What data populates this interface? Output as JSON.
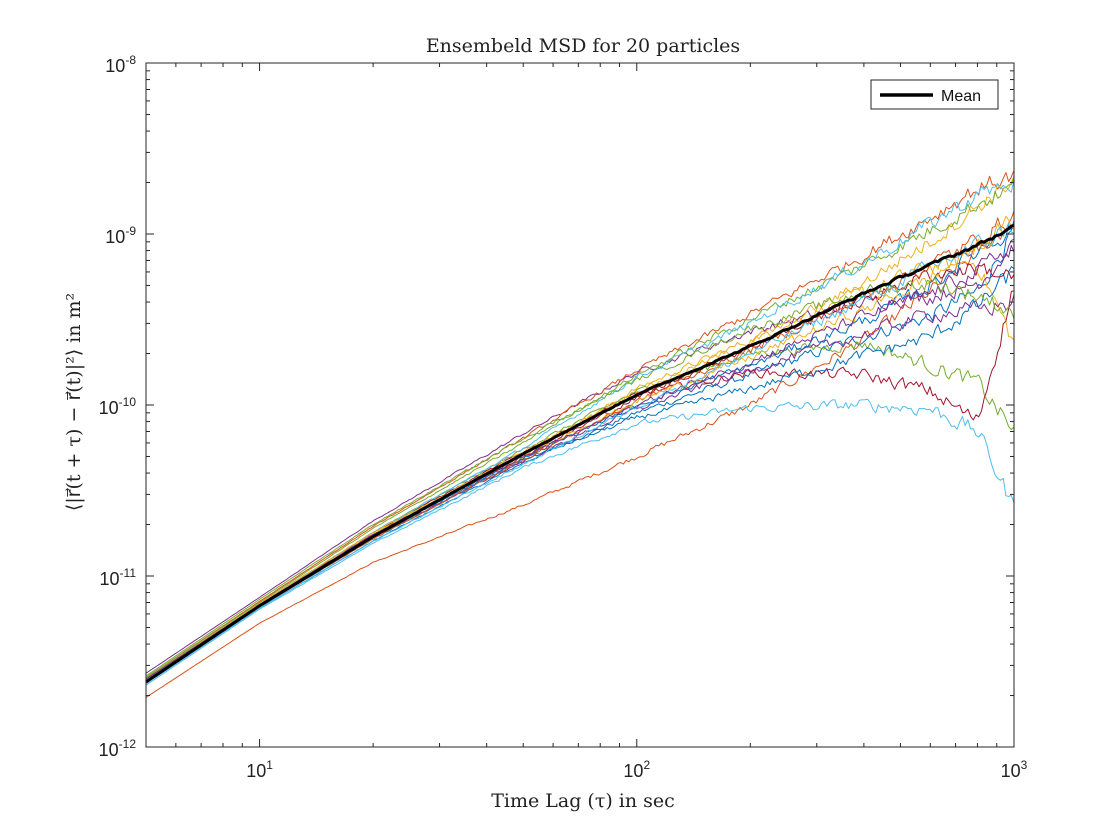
{
  "chart_data": {
    "type": "line",
    "title": "Ensembeld MSD for 20 particles",
    "xlabel": "Time Lag (τ) in sec",
    "ylabel": "⟨|r⃗(t + τ) − r⃗(t)|²⟩ in m²",
    "xscale": "log",
    "yscale": "log",
    "xlim": [
      5,
      1000
    ],
    "ylim": [
      1e-12,
      1e-08
    ],
    "x_ticks": [
      {
        "value": 10,
        "base": "10",
        "exp": "1"
      },
      {
        "value": 100,
        "base": "10",
        "exp": "2"
      },
      {
        "value": 1000,
        "base": "10",
        "exp": "3"
      }
    ],
    "y_ticks": [
      {
        "value": 1e-12,
        "base": "10",
        "exp": "-12"
      },
      {
        "value": 1e-11,
        "base": "10",
        "exp": "-11"
      },
      {
        "value": 1e-10,
        "base": "10",
        "exp": "-10"
      },
      {
        "value": 1e-09,
        "base": "10",
        "exp": "-9"
      },
      {
        "value": 1e-08,
        "base": "10",
        "exp": "-8"
      }
    ],
    "grid": false,
    "legend": {
      "position": "top-right",
      "entries": [
        "Mean"
      ]
    },
    "x": [
      5,
      10,
      20,
      50,
      100,
      200,
      400,
      600,
      800,
      1000
    ],
    "mean": {
      "name": "Mean",
      "color": "#000000",
      "values": [
        2.4e-12,
        6.7e-12,
        1.7e-11,
        5.2e-11,
        1.15e-10,
        2.2e-10,
        4.5e-10,
        6.6e-10,
        8.6e-10,
        1.1e-09
      ]
    },
    "particles": [
      {
        "color": "#0072BD",
        "values": [
          2.35e-12,
          6.5e-12,
          1.6e-11,
          4.6e-11,
          9e-11,
          1.5e-10,
          2.5e-10,
          3.3e-10,
          4.6e-10,
          1.05e-09
        ]
      },
      {
        "color": "#D95319",
        "values": [
          1.95e-12,
          5.3e-12,
          1.2e-11,
          2.6e-11,
          5e-11,
          1e-10,
          2.4e-10,
          4.6e-10,
          7.8e-10,
          1.2e-09
        ]
      },
      {
        "color": "#EDB120",
        "values": [
          2.5e-12,
          6.8e-12,
          1.75e-11,
          5e-11,
          1.25e-10,
          2.4e-10,
          4.6e-10,
          6.5e-10,
          6.8e-10,
          2.3e-10
        ]
      },
      {
        "color": "#7E2F8E",
        "values": [
          2.7e-12,
          7.5e-12,
          2.1e-11,
          6.8e-11,
          1.55e-10,
          2.7e-10,
          4e-10,
          4.3e-10,
          5.2e-10,
          8.5e-10
        ]
      },
      {
        "color": "#77AC30",
        "values": [
          2.45e-12,
          6.9e-12,
          1.8e-11,
          5.5e-11,
          1.2e-10,
          2e-10,
          2.3e-10,
          1.7e-10,
          1.35e-10,
          7e-11
        ]
      },
      {
        "color": "#4DBEEE",
        "values": [
          2.3e-12,
          6.4e-12,
          1.55e-11,
          4.3e-11,
          7.8e-11,
          9.6e-11,
          1e-10,
          9.5e-11,
          7e-11,
          2.5e-11
        ]
      },
      {
        "color": "#A2142F",
        "values": [
          2.5e-12,
          6.9e-12,
          1.8e-11,
          5.3e-11,
          1.15e-10,
          1.55e-10,
          1.5e-10,
          1.2e-10,
          8e-11,
          5e-10
        ]
      },
      {
        "color": "#0072BD",
        "values": [
          2.4e-12,
          6.6e-12,
          1.65e-11,
          4.8e-11,
          8.4e-11,
          1.25e-10,
          1.95e-10,
          2.5e-10,
          3.8e-10,
          6e-10
        ]
      },
      {
        "color": "#D95319",
        "values": [
          2.55e-12,
          7.1e-12,
          1.95e-11,
          6.4e-11,
          1.6e-10,
          3.4e-10,
          7.5e-10,
          1.25e-09,
          1.85e-09,
          2.2e-09
        ]
      },
      {
        "color": "#EDB120",
        "values": [
          2.45e-12,
          6.7e-12,
          1.75e-11,
          5.3e-11,
          1.2e-10,
          2.3e-10,
          5.2e-10,
          9e-10,
          1.45e-09,
          2.1e-09
        ]
      },
      {
        "color": "#7E2F8E",
        "values": [
          2.4e-12,
          6.7e-12,
          1.7e-11,
          4.7e-11,
          9.5e-11,
          1.6e-10,
          2.6e-10,
          3.4e-10,
          3.6e-10,
          4e-10
        ]
      },
      {
        "color": "#77AC30",
        "values": [
          2.55e-12,
          7e-12,
          1.9e-11,
          6e-11,
          1.5e-10,
          3.2e-10,
          6.6e-10,
          1.05e-09,
          1.5e-09,
          1.9e-09
        ]
      },
      {
        "color": "#4DBEEE",
        "values": [
          2.5e-12,
          6.9e-12,
          1.8e-11,
          5.6e-11,
          1.45e-10,
          3e-10,
          6.8e-10,
          1.15e-09,
          1.7e-09,
          2e-09
        ]
      },
      {
        "color": "#A2142F",
        "values": [
          2.5e-12,
          6.8e-12,
          1.75e-11,
          5e-11,
          1.1e-10,
          2.2e-10,
          4.2e-10,
          5.8e-10,
          6.4e-10,
          5.5e-10
        ]
      },
      {
        "color": "#0072BD",
        "values": [
          2.45e-12,
          6.7e-12,
          1.7e-11,
          4.9e-11,
          1e-10,
          1.7e-10,
          3.1e-10,
          5e-10,
          8e-10,
          1.1e-09
        ]
      },
      {
        "color": "#D95319",
        "values": [
          2.4e-12,
          6.6e-12,
          1.65e-11,
          4.8e-11,
          1.05e-10,
          2.1e-10,
          4.3e-10,
          6.6e-10,
          9.2e-10,
          1.3e-09
        ]
      },
      {
        "color": "#EDB120",
        "values": [
          2.5e-12,
          6.9e-12,
          1.8e-11,
          5.1e-11,
          1.05e-10,
          1.9e-10,
          3.6e-10,
          5.5e-10,
          8.4e-10,
          1.2e-09
        ]
      },
      {
        "color": "#7E2F8E",
        "values": [
          2.5e-12,
          6.8e-12,
          1.75e-11,
          5e-11,
          1e-10,
          1.8e-10,
          3.3e-10,
          4.5e-10,
          6e-10,
          9e-10
        ]
      },
      {
        "color": "#77AC30",
        "values": [
          2.6e-12,
          7.3e-12,
          2e-11,
          6.4e-11,
          1.4e-10,
          2.8e-10,
          4.6e-10,
          5.2e-10,
          4.4e-10,
          3.5e-10
        ]
      },
      {
        "color": "#4DBEEE",
        "values": [
          2.35e-12,
          6.5e-12,
          1.6e-11,
          4.5e-11,
          9.8e-11,
          2e-10,
          4.1e-10,
          6.4e-10,
          8.6e-10,
          1.1e-09
        ]
      }
    ]
  }
}
